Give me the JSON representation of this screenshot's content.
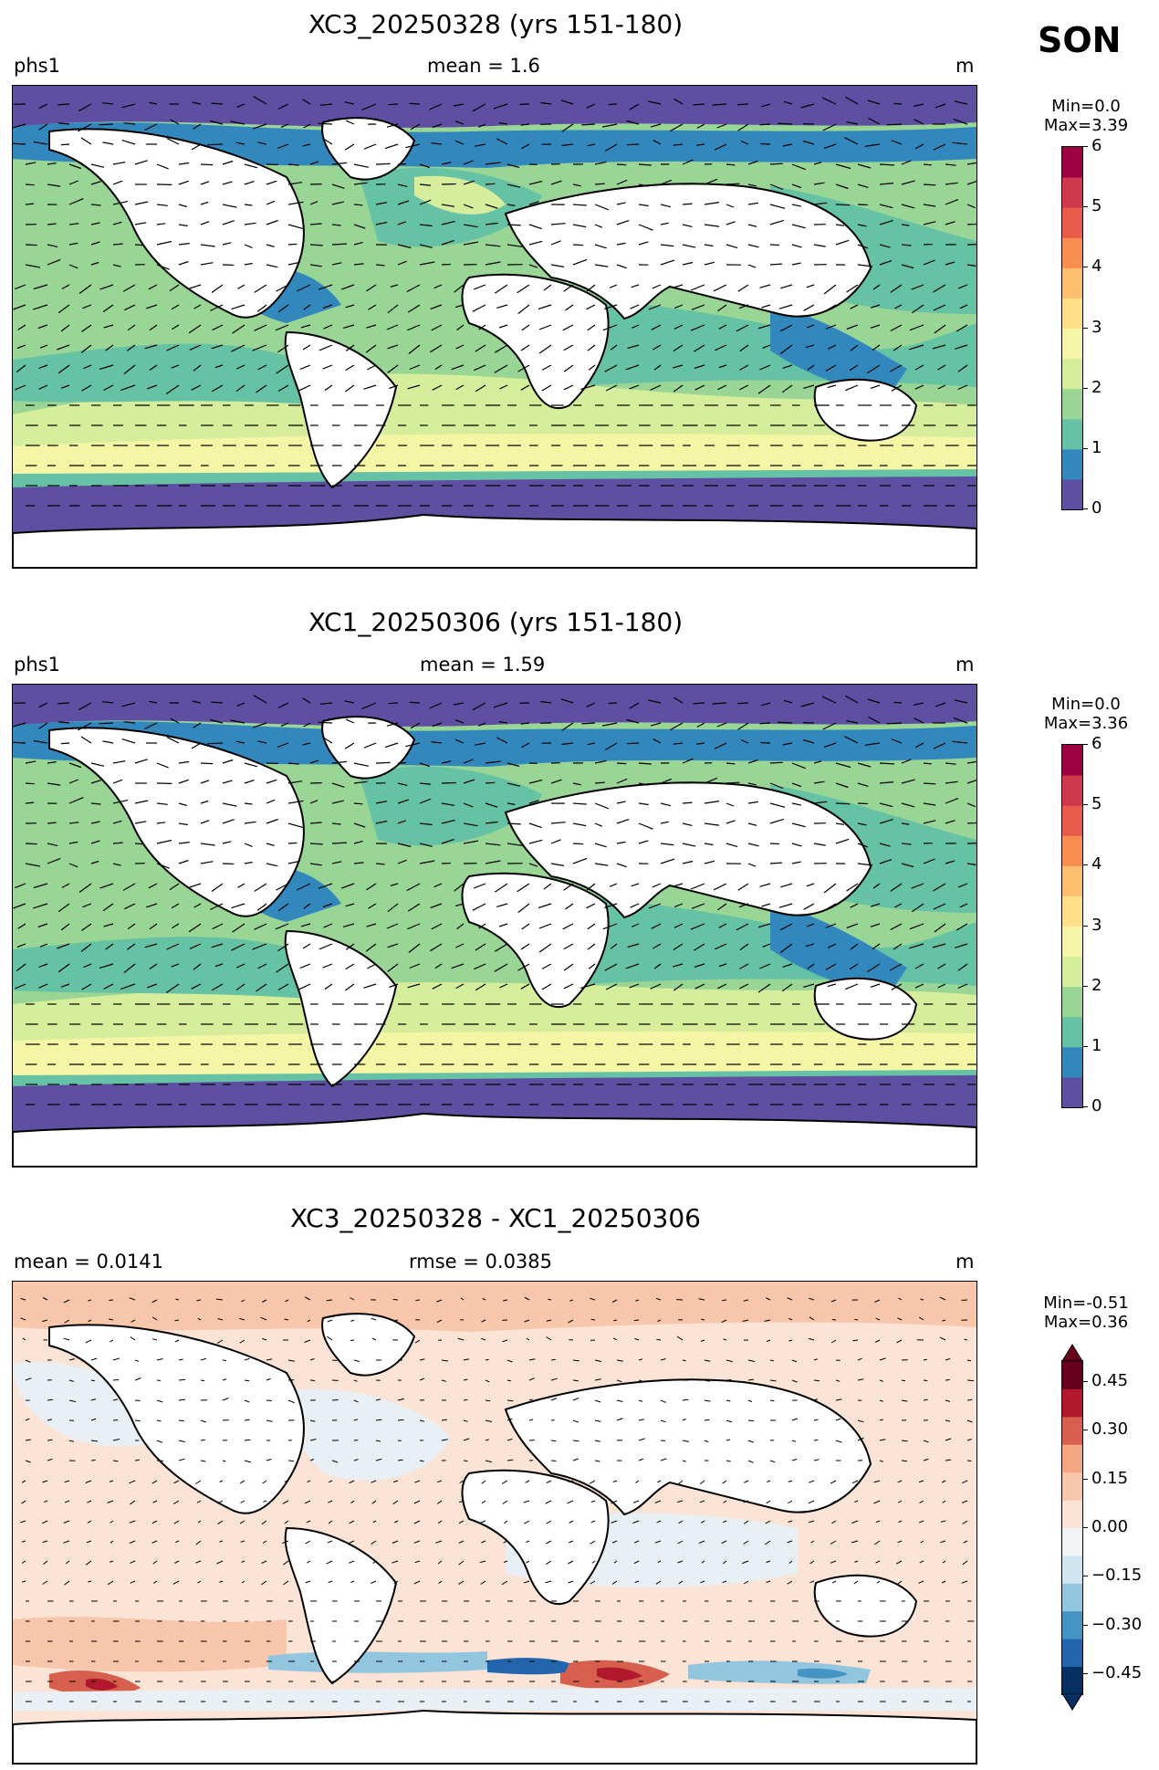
{
  "season": "SON",
  "panels": [
    {
      "title": "XC3_20250328 (yrs 151-180)",
      "left": "phs1",
      "center": "mean = 1.6",
      "right": "m",
      "min": "Min=0.0",
      "max": "Max=3.39",
      "colorbar_ticks": [
        "0",
        "1",
        "2",
        "3",
        "4",
        "5",
        "6"
      ]
    },
    {
      "title": "XC1_20250306 (yrs 151-180)",
      "left": "phs1",
      "center": "mean = 1.59",
      "right": "m",
      "min": "Min=0.0",
      "max": "Max=3.36",
      "colorbar_ticks": [
        "0",
        "1",
        "2",
        "3",
        "4",
        "5",
        "6"
      ]
    },
    {
      "title": "XC3_20250328 - XC1_20250306",
      "left": "mean = 0.0141",
      "center": "rmse = 0.0385",
      "right": "m",
      "min": "Min=-0.51",
      "max": "Max=0.36",
      "colorbar_ticks": [
        "0.45",
        "0.30",
        "0.15",
        "0.00",
        "−0.15",
        "−0.30",
        "−0.45"
      ]
    }
  ],
  "colors": {
    "spectral": [
      "#5e4fa2",
      "#3288bd",
      "#66c2a5",
      "#99d594",
      "#d6ee9b",
      "#f4f6a5",
      "#fee08b",
      "#fdbf6f",
      "#f88d52",
      "#e85a4a",
      "#cf384d",
      "#9e0142"
    ],
    "rdbu": [
      "#053061",
      "#2166ac",
      "#4393c3",
      "#92c5de",
      "#d1e5f0",
      "#f0f4f7",
      "#fbe3d6",
      "#f7c6ab",
      "#f4a582",
      "#d6604d",
      "#b2182b",
      "#67001f"
    ]
  }
}
